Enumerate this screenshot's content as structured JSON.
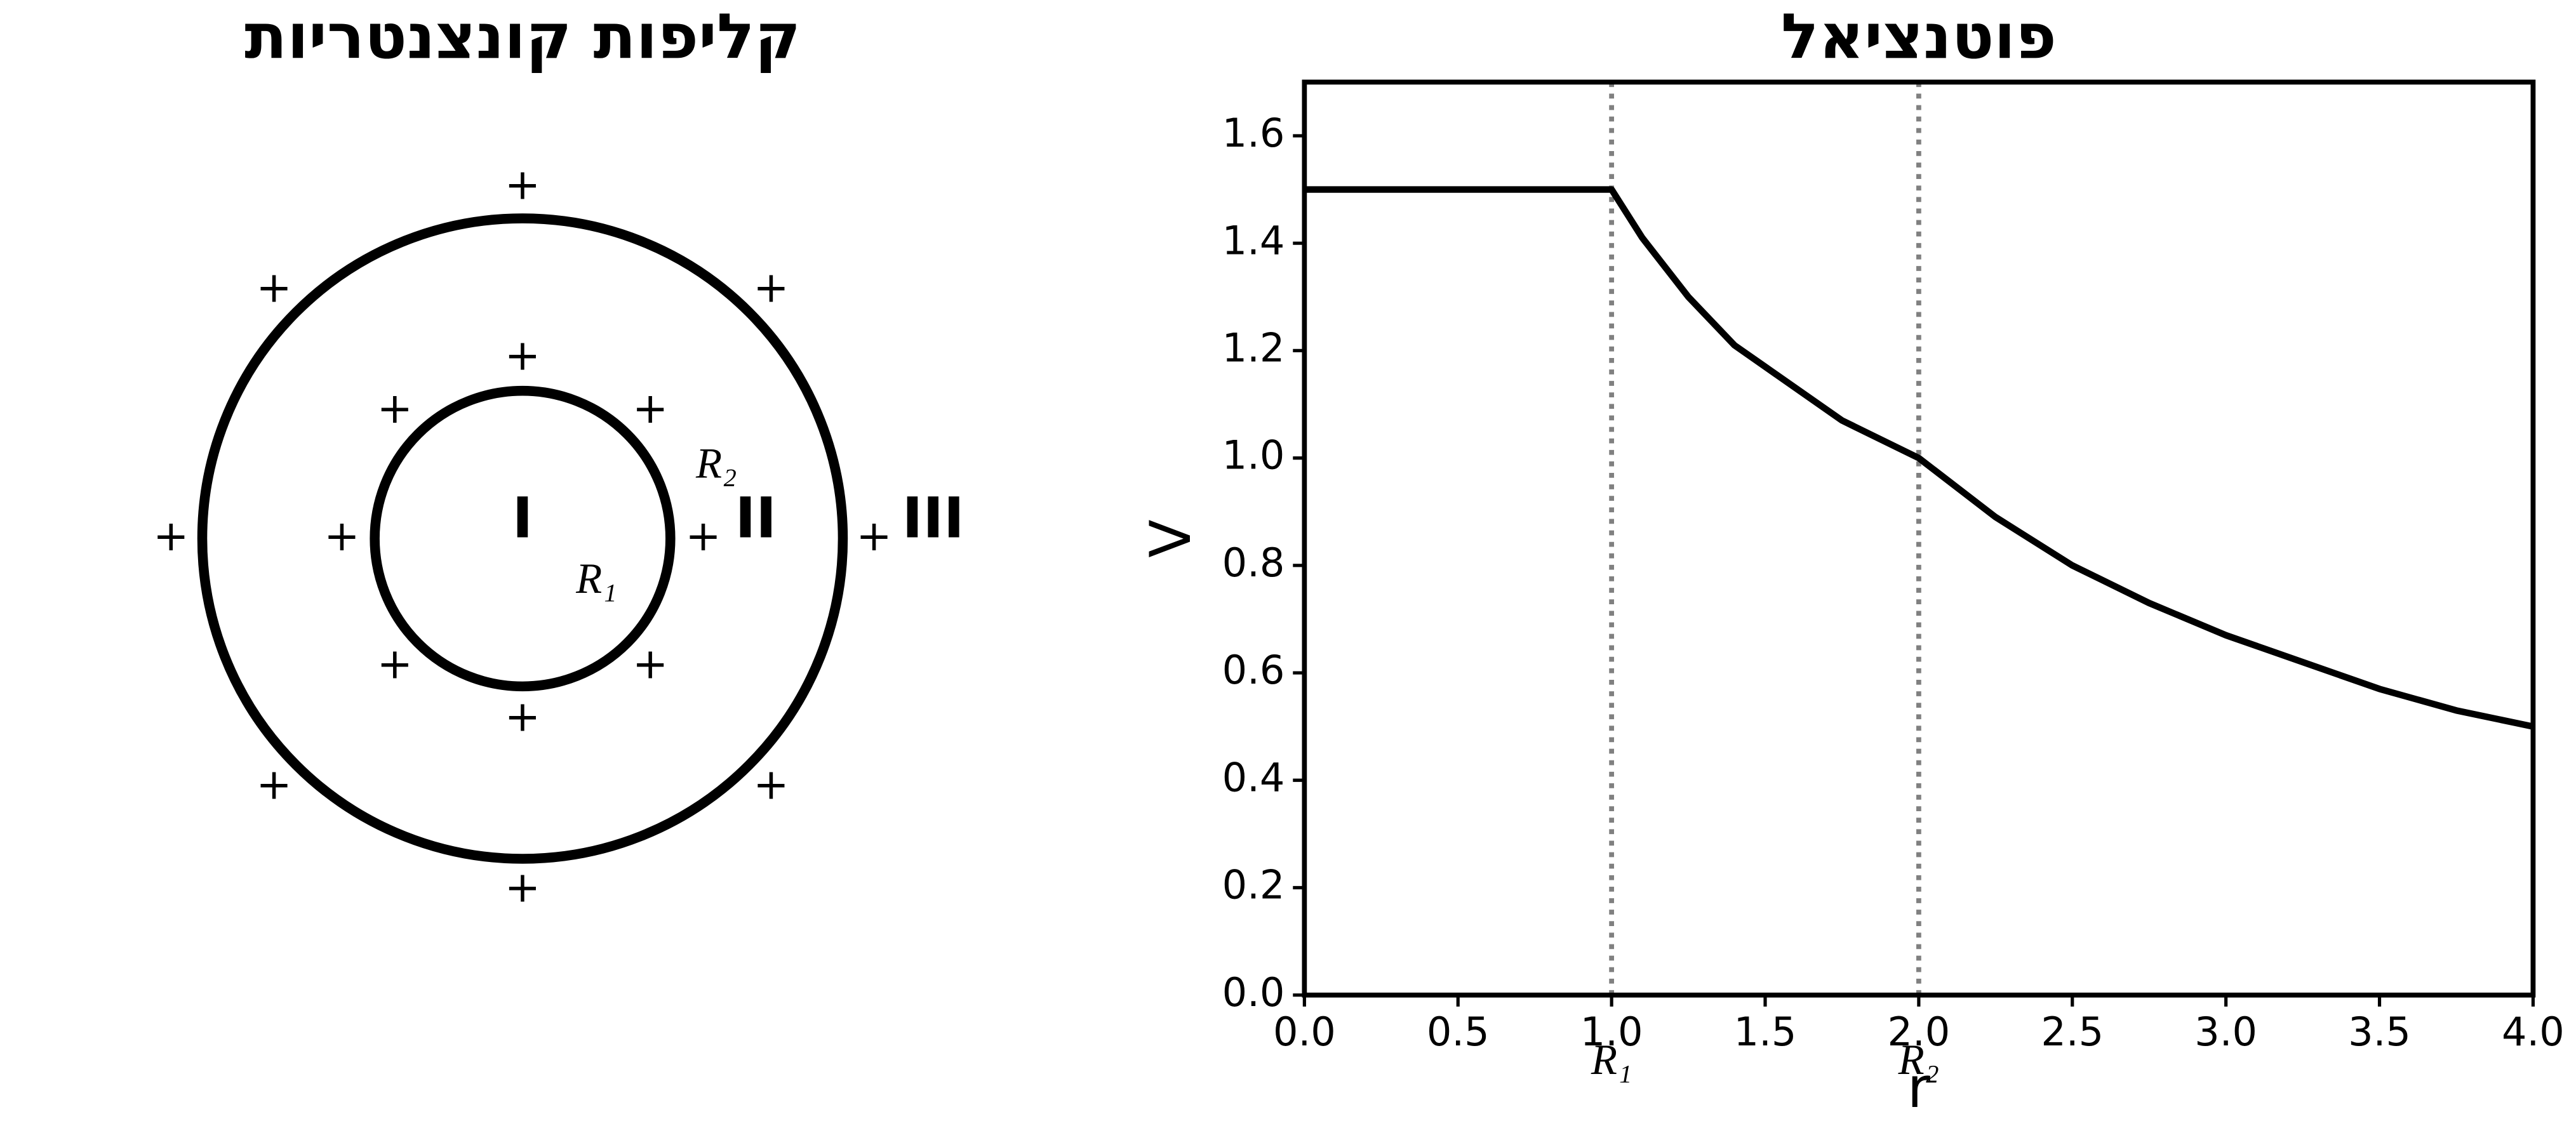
{
  "diagram": {
    "title": "קליפות קונצנטריות",
    "charge_symbol": "+",
    "regions": [
      "I",
      "II",
      "III"
    ],
    "radii": [
      "R₁",
      "R₂"
    ]
  },
  "chart_data": {
    "type": "line",
    "title": "פוטנציאל",
    "x_label": "r",
    "y_label": "V",
    "color": "#000000",
    "x": [
      0,
      0.25,
      0.5,
      0.75,
      1.0,
      1.1,
      1.25,
      1.4,
      1.5,
      1.75,
      2.0,
      2.25,
      2.5,
      2.75,
      3.0,
      3.25,
      3.5,
      3.75,
      4.0
    ],
    "values": [
      1.5,
      1.5,
      1.5,
      1.5,
      1.5,
      1.41,
      1.3,
      1.21,
      1.17,
      1.07,
      1.0,
      0.89,
      0.8,
      0.73,
      0.67,
      0.62,
      0.57,
      0.53,
      0.5
    ],
    "xlim": [
      0,
      4
    ],
    "ylim": [
      0,
      1.7
    ],
    "xticks": [
      {
        "value": 0,
        "label": "0.0"
      },
      {
        "value": 0.5,
        "label": "0.5"
      },
      {
        "value": 1,
        "label": "1.0"
      },
      {
        "value": 1.5,
        "label": "1.5"
      },
      {
        "value": 2,
        "label": "2.0"
      },
      {
        "value": 2.5,
        "label": "2.5"
      },
      {
        "value": 3,
        "label": "3.0"
      },
      {
        "value": 3.5,
        "label": "3.5"
      },
      {
        "value": 4,
        "label": "4.0"
      }
    ],
    "yticks": [
      {
        "value": 0,
        "label": "0.0"
      },
      {
        "value": 0.2,
        "label": "0.2"
      },
      {
        "value": 0.4,
        "label": "0.4"
      },
      {
        "value": 0.6,
        "label": "0.6"
      },
      {
        "value": 0.8,
        "label": "0.8"
      },
      {
        "value": 1,
        "label": "1.0"
      },
      {
        "value": 1.2,
        "label": "1.2"
      },
      {
        "value": 1.4,
        "label": "1.4"
      },
      {
        "value": 1.6,
        "label": "1.6"
      }
    ],
    "reference_lines": [
      {
        "x": 1,
        "label": "R₁",
        "color": "#808080"
      },
      {
        "x": 2,
        "label": "R₂",
        "color": "#808080"
      }
    ],
    "grid": false
  }
}
